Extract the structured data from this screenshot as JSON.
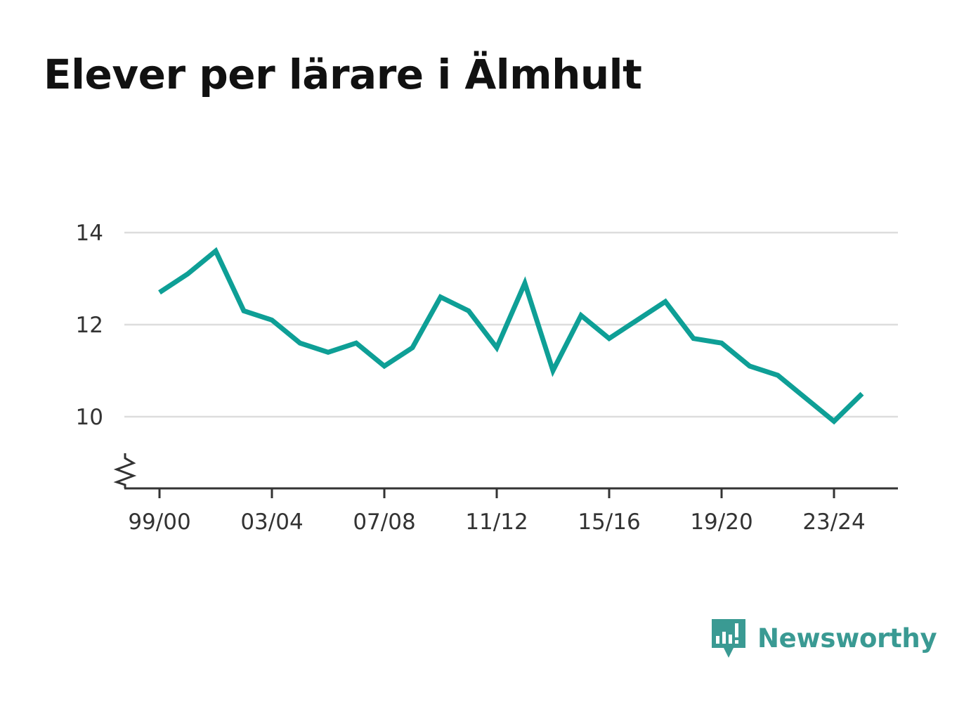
{
  "brand": {
    "name": "Newsworthy",
    "icon": "newsworthy-logo-icon",
    "color": "#3a9a93"
  },
  "chart_data": {
    "type": "line",
    "title": "Elever per lärare i Älmhult",
    "xlabel": "",
    "ylabel": "",
    "x": [
      "99/00",
      "00/01",
      "01/02",
      "02/03",
      "03/04",
      "04/05",
      "05/06",
      "06/07",
      "07/08",
      "08/09",
      "09/10",
      "10/11",
      "11/12",
      "12/13",
      "13/14",
      "14/15",
      "15/16",
      "16/17",
      "17/18",
      "18/19",
      "19/20",
      "20/21",
      "21/22",
      "22/23",
      "23/24",
      "24/25"
    ],
    "x_tick_labels": [
      "99/00",
      "03/04",
      "07/08",
      "11/12",
      "15/16",
      "19/20",
      "23/24"
    ],
    "series": [
      {
        "color": "#0e9f96",
        "values": [
          12.7,
          13.1,
          13.6,
          12.3,
          12.1,
          11.6,
          11.4,
          11.6,
          11.1,
          11.5,
          12.6,
          12.3,
          11.5,
          12.9,
          11.0,
          12.2,
          11.7,
          12.1,
          12.5,
          11.7,
          11.6,
          11.1,
          10.9,
          10.4,
          9.9,
          10.5
        ]
      }
    ],
    "y_ticks": [
      10,
      12,
      14
    ],
    "ylim": [
      8.5,
      14.3
    ],
    "y_axis_break": true,
    "grid": true,
    "gridline_color": "#dddddd"
  }
}
